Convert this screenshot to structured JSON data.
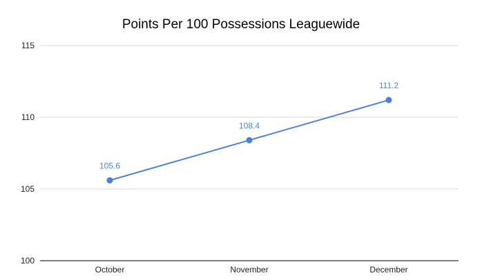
{
  "chart_data": {
    "type": "line",
    "title": "Points Per 100 Possessions Leaguewide",
    "xlabel": "",
    "ylabel": "",
    "categories": [
      "October",
      "November",
      "December"
    ],
    "series": [
      {
        "values": [
          105.6,
          108.4,
          111.2
        ],
        "data_labels": [
          "105.6",
          "108.4",
          "111.2"
        ]
      }
    ],
    "ylim": [
      100,
      115
    ],
    "yticks": [
      100,
      105,
      110,
      115
    ],
    "ytick_labels": [
      "100",
      "105",
      "110",
      "115"
    ],
    "grid": true,
    "legend": "none",
    "colors": {
      "line": "#4a7fdc",
      "label": "#4a86c8",
      "grid": "#d9d9d9",
      "baseline": "#333333"
    }
  }
}
